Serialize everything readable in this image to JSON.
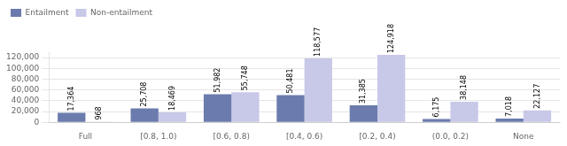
{
  "chart_data": {
    "type": "bar",
    "categories": [
      "Full",
      "[0.8, 1.0)",
      "[0.6, 0.8)",
      "[0.4, 0.6)",
      "[0.2, 0.4)",
      "(0.0, 0.2)",
      "None"
    ],
    "series": [
      {
        "name": "Entailment",
        "color": "#6B7BAD",
        "values": [
          17364,
          25708,
          51982,
          50481,
          31385,
          6175,
          7018
        ],
        "value_labels": [
          "17,364",
          "25,708",
          "51,982",
          "50,481",
          "31,385",
          "6,175",
          "7,018"
        ]
      },
      {
        "name": "Non-entailment",
        "color": "#C8C8E8",
        "values": [
          968,
          18469,
          55748,
          118577,
          124918,
          38148,
          22127
        ],
        "value_labels": [
          "968",
          "18,469",
          "55,748",
          "118,577",
          "124,918",
          "38,148",
          "22,127"
        ]
      }
    ],
    "ylim": [
      0,
      130000
    ],
    "yticks": [
      0,
      {
        "value": 20000,
        "label": "20,000"
      },
      {
        "value": 40000,
        "label": "40,000"
      },
      {
        "value": 60000,
        "label": "60,000"
      },
      {
        "value": 80000,
        "label": "80,000"
      },
      {
        "value": 100000,
        "label": "100,000"
      },
      {
        "value": 120000,
        "label": "120,000"
      }
    ],
    "grid": true,
    "legend": "upper left",
    "data_labels": true
  }
}
